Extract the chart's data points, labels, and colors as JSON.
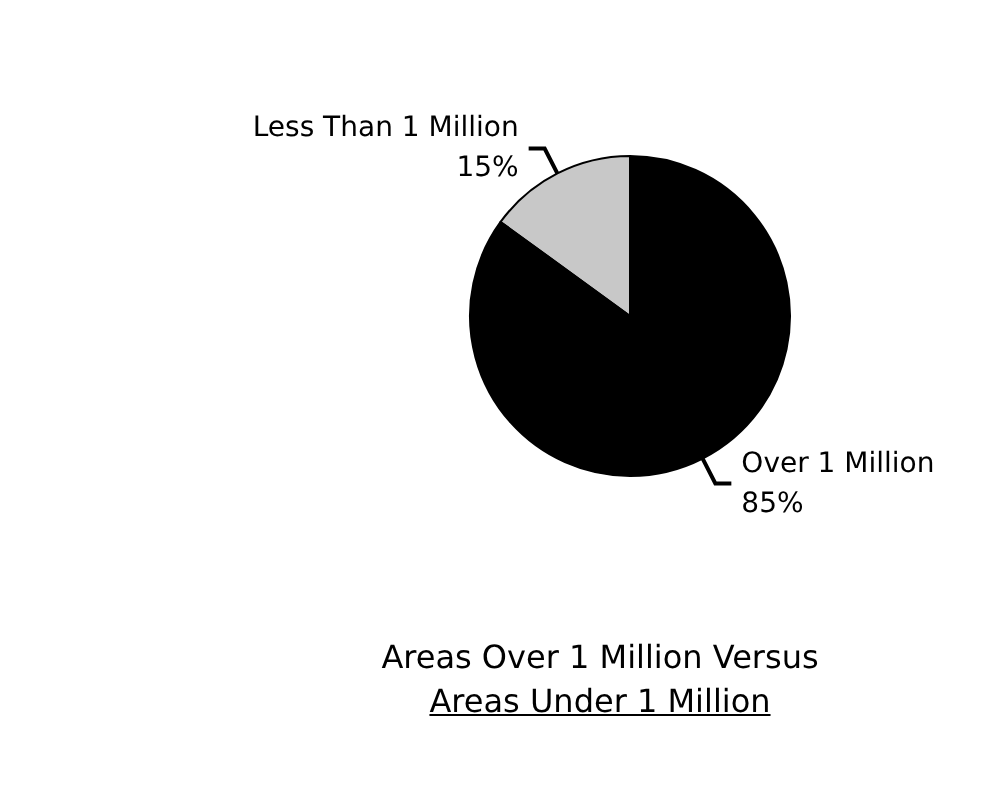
{
  "chart_data": {
    "type": "pie",
    "title": "Areas Over 1 Million Versus",
    "subtitle": "Areas Under 1 Million",
    "categories": [
      "Less Than 1 Million",
      "Over 1 Million"
    ],
    "values": [
      15,
      85
    ],
    "colors": [
      "#c8c8c8",
      "#000000"
    ],
    "value_labels": [
      "15%",
      "85%"
    ],
    "legend": false
  }
}
